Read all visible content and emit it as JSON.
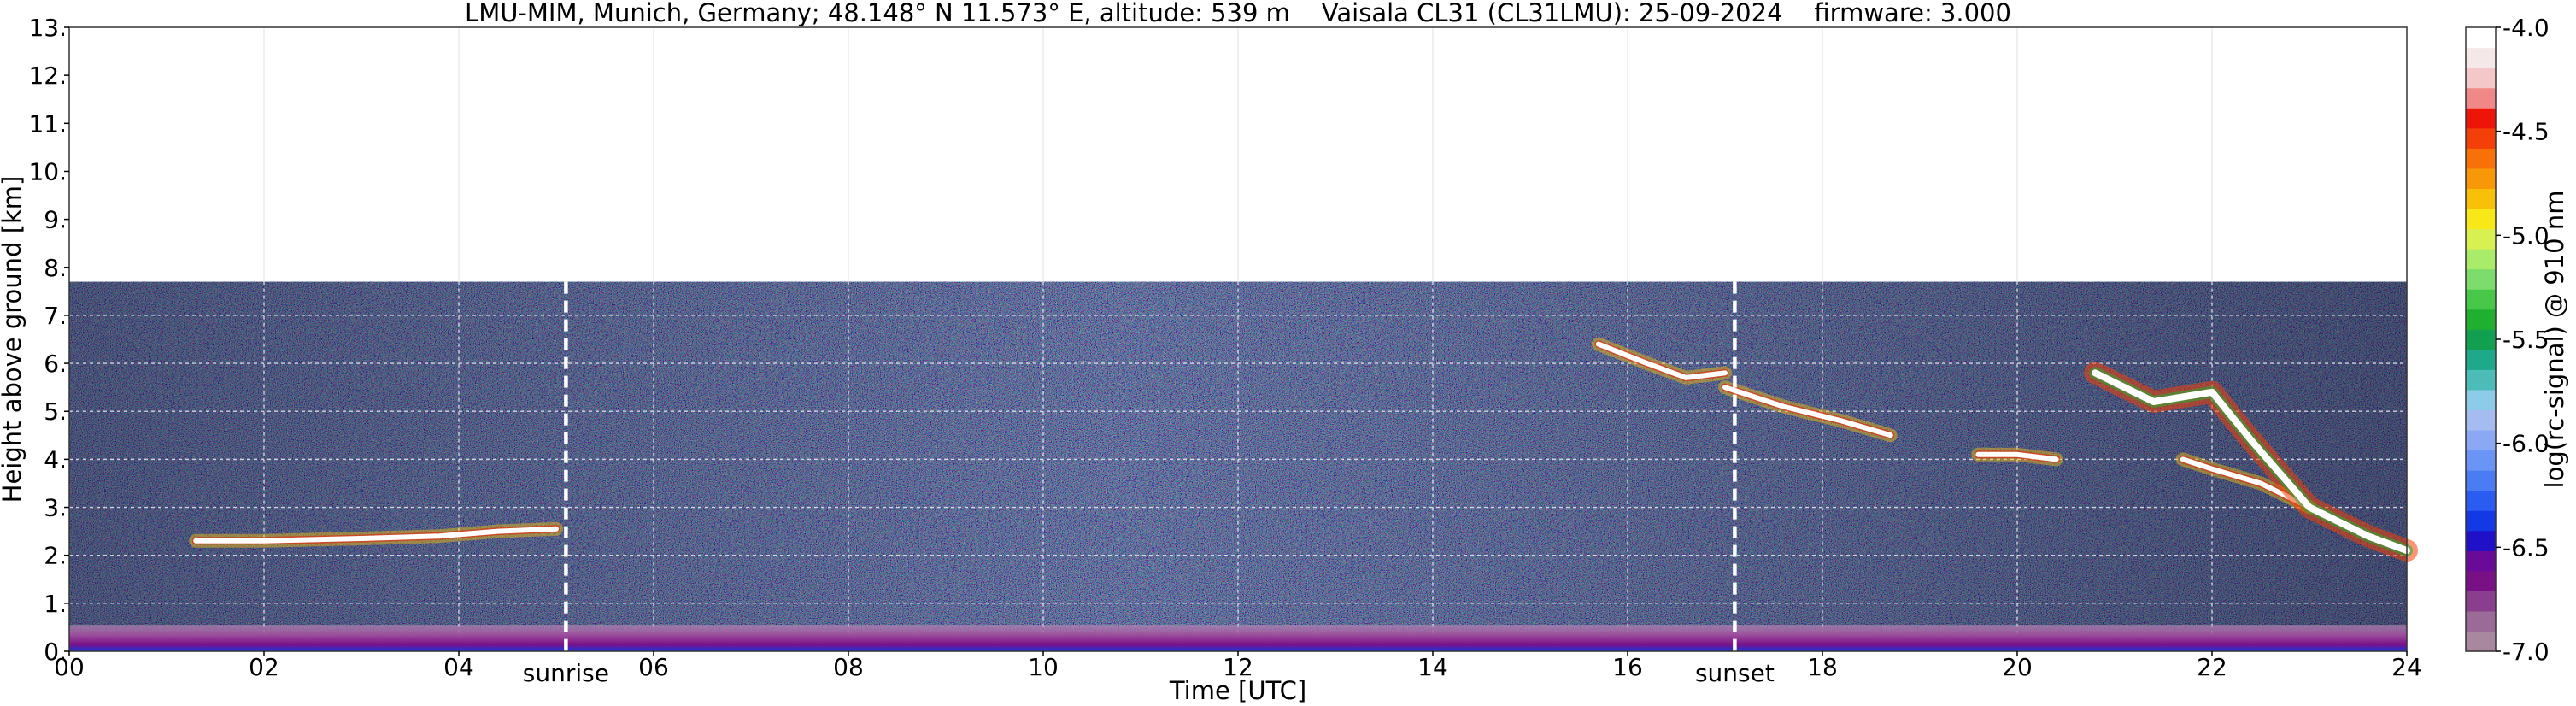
{
  "chart_data": {
    "type": "heatmap",
    "title": "LMU-MIM, Munich, Germany; 48.148° N 11.573° E, altitude: 539 m    Vaisala CL31 (CL31LMU): 25-09-2024    firmware: 3.000",
    "xlabel": "Time [UTC]",
    "ylabel": "Height above ground [km]",
    "xlim": [
      0,
      24
    ],
    "ylim": [
      0,
      13
    ],
    "x_ticks": [
      "00",
      "02",
      "04",
      "06",
      "08",
      "10",
      "12",
      "14",
      "16",
      "18",
      "20",
      "22",
      "24"
    ],
    "y_ticks": [
      "0.",
      "1.",
      "2.",
      "3.",
      "4.",
      "5.",
      "6.",
      "7.",
      "8.",
      "9.",
      "10.",
      "11.",
      "12.",
      "13."
    ],
    "grid": true,
    "measurement_ceiling_km": 7.7,
    "events": [
      {
        "label": "sunrise",
        "time": 5.1
      },
      {
        "label": "sunset",
        "time": 17.1
      }
    ],
    "colorbar": {
      "label": "log(rc-signal) @ 910 nm",
      "range": [
        -7.0,
        -4.0
      ],
      "ticks": [
        "-4.0",
        "-4.5",
        "-5.0",
        "-5.5",
        "-6.0",
        "-6.5",
        "-7.0"
      ],
      "colors": [
        "#a8889e",
        "#9a6b96",
        "#8a3f8e",
        "#7a1086",
        "#6a0a9a",
        "#2010c8",
        "#1438e6",
        "#2a5cf2",
        "#4a7cf4",
        "#6a94f6",
        "#8aa8f4",
        "#a4bcf0",
        "#8ccce8",
        "#4cbcb8",
        "#1eaa8a",
        "#10a050",
        "#20b030",
        "#48c848",
        "#7cdc6c",
        "#a8ec6a",
        "#d8f050",
        "#f8e818",
        "#f8c008",
        "#f89808",
        "#f87008",
        "#f44008",
        "#ee1408",
        "#f08888",
        "#f4c8c8",
        "#f4e8e8",
        "#ffffff"
      ]
    },
    "layers": [
      {
        "name": "surface aerosol layer",
        "t_start": 0.0,
        "t_end": 24.0,
        "h_min": 0.0,
        "h_max": 0.55
      },
      {
        "name": "cloud layer",
        "points": [
          [
            1.3,
            2.3
          ],
          [
            2.0,
            2.3
          ],
          [
            3.0,
            2.35
          ],
          [
            3.8,
            2.4
          ],
          [
            4.4,
            2.5
          ],
          [
            5.0,
            2.55
          ]
        ]
      },
      {
        "name": "cloud layer",
        "points": [
          [
            15.7,
            6.4
          ],
          [
            16.2,
            6.0
          ],
          [
            16.6,
            5.7
          ],
          [
            17.0,
            5.8
          ]
        ]
      },
      {
        "name": "cloud layer",
        "points": [
          [
            17.0,
            5.5
          ],
          [
            17.6,
            5.1
          ],
          [
            18.2,
            4.8
          ],
          [
            18.7,
            4.5
          ]
        ]
      },
      {
        "name": "cloud layer",
        "points": [
          [
            19.6,
            4.1
          ],
          [
            20.0,
            4.1
          ],
          [
            20.4,
            4.0
          ]
        ]
      },
      {
        "name": "cloud layer",
        "points": [
          [
            21.7,
            4.0
          ],
          [
            22.0,
            3.8
          ],
          [
            22.5,
            3.5
          ],
          [
            23.0,
            3.0
          ]
        ]
      },
      {
        "name": "cirrus",
        "points": [
          [
            20.8,
            5.8
          ],
          [
            21.4,
            5.2
          ],
          [
            22.0,
            5.4
          ],
          [
            22.4,
            4.4
          ],
          [
            23.0,
            3.0
          ],
          [
            23.6,
            2.4
          ],
          [
            24.0,
            2.1
          ]
        ]
      }
    ]
  }
}
